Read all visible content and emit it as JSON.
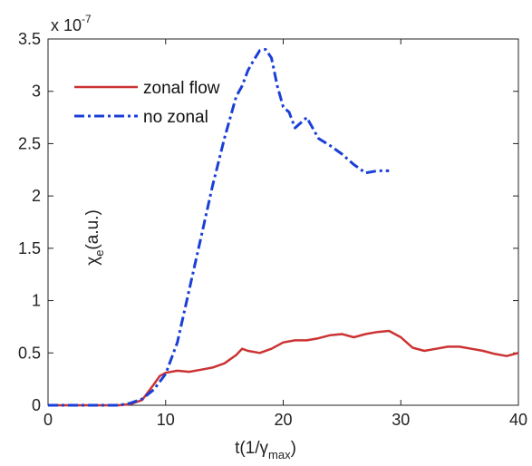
{
  "chart_data": {
    "type": "line",
    "xlabel_main": "t(1/",
    "xlabel_gamma": "γ",
    "xlabel_sub": "max",
    "xlabel_close": ")",
    "ylabel_chi": "χ",
    "ylabel_sub": "e",
    "ylabel_rest": "(a.u.)",
    "y_multiplier_base": "x 10",
    "y_multiplier_exp": "-7",
    "xlim": [
      0,
      40
    ],
    "ylim": [
      0,
      3.5
    ],
    "x_ticks": [
      0,
      10,
      20,
      30,
      40
    ],
    "x_tick_labels": [
      "0",
      "10",
      "20",
      "30",
      "40"
    ],
    "y_ticks": [
      0,
      0.5,
      1,
      1.5,
      2,
      2.5,
      3,
      3.5
    ],
    "y_tick_labels": [
      "0",
      "0.5",
      "1",
      "1.5",
      "2",
      "2.5",
      "3",
      "3.5"
    ],
    "grid": false,
    "legend_position": "top-left",
    "series": [
      {
        "name": "zonal flow",
        "color": "#cc3333",
        "style": "solid",
        "x": [
          0,
          6,
          7,
          8,
          9,
          9.5,
          10,
          11,
          12,
          13,
          14,
          15,
          16,
          16.5,
          17,
          18,
          19,
          20,
          21,
          22,
          23,
          24,
          25,
          26,
          27,
          28,
          29,
          30,
          31,
          32,
          33,
          34,
          35,
          36,
          37,
          38,
          39,
          40
        ],
        "y": [
          0,
          0,
          0.01,
          0.05,
          0.2,
          0.28,
          0.31,
          0.33,
          0.32,
          0.34,
          0.36,
          0.4,
          0.48,
          0.54,
          0.52,
          0.5,
          0.54,
          0.6,
          0.62,
          0.62,
          0.64,
          0.67,
          0.68,
          0.65,
          0.68,
          0.7,
          0.71,
          0.65,
          0.55,
          0.52,
          0.54,
          0.56,
          0.56,
          0.54,
          0.52,
          0.49,
          0.47,
          0.5
        ]
      },
      {
        "name": "no zonal",
        "color": "#1a3fd6",
        "style": "dashdot",
        "x": [
          0,
          6,
          7,
          8,
          9,
          10,
          11,
          12,
          13,
          14,
          15,
          16,
          16.5,
          17,
          17.5,
          18,
          18.5,
          19,
          19.5,
          20,
          20.5,
          21,
          22,
          23,
          24,
          25,
          26,
          27,
          28,
          29
        ],
        "y": [
          0,
          0,
          0.02,
          0.06,
          0.15,
          0.3,
          0.6,
          1.1,
          1.6,
          2.1,
          2.55,
          2.95,
          3.05,
          3.2,
          3.3,
          3.39,
          3.4,
          3.32,
          3.05,
          2.85,
          2.8,
          2.65,
          2.75,
          2.55,
          2.48,
          2.4,
          2.3,
          2.22,
          2.24,
          2.24
        ]
      }
    ]
  }
}
